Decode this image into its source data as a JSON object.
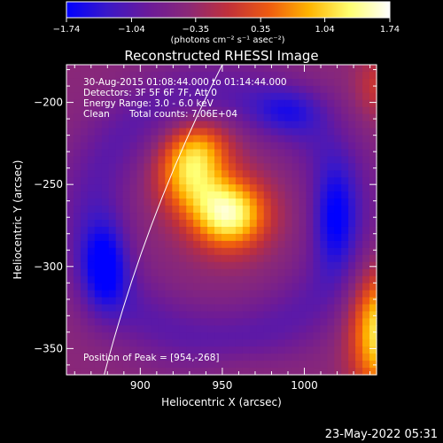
{
  "chart_data": {
    "type": "heatmap",
    "title": "Reconstructed RHESSI Image",
    "xlabel": "Heliocentric X (arcsec)",
    "ylabel": "Heliocentric Y (arcsec)",
    "xlim": [
      855,
      1044
    ],
    "ylim": [
      -366,
      -177
    ],
    "x_ticks": [
      900,
      950,
      1000
    ],
    "y_ticks": [
      -200,
      -250,
      -300,
      -350
    ],
    "colorbar": {
      "min": -1.74,
      "max": 1.74,
      "tick_labels": [
        "-1.74",
        "-1.04",
        "-0.35",
        "0.35",
        "1.04",
        "1.74"
      ],
      "label": "(photons cm⁻² s⁻¹ asec⁻²)",
      "colors": [
        "#0000ff",
        "#3a18c8",
        "#6a1a9a",
        "#8a2878",
        "#c0303a",
        "#ee5a10",
        "#ffb400",
        "#ffff70",
        "#ffffff"
      ]
    },
    "annotations": {
      "time_range": "30-Aug-2015 01:08:44.000 to 01:14:44.000",
      "detectors": "Detectors: 3F 5F 6F 7F, Att 0",
      "energy": "Energy Range: 3.0 - 6.0 keV",
      "method": "Clean",
      "total_counts": "Total counts: 7.06E+04",
      "peak": "Position of Peak = [954,-268]"
    },
    "peak": {
      "x": 954,
      "y": -268
    },
    "sources": [
      {
        "x": 954,
        "y": -268,
        "amp": 1.95,
        "sx": 16,
        "sy": 15
      },
      {
        "x": 930,
        "y": -244,
        "amp": 1.35,
        "sx": 14,
        "sy": 16
      },
      {
        "x": 937,
        "y": -226,
        "amp": 0.75,
        "sx": 14,
        "sy": 12
      }
    ],
    "ring": {
      "x": 948,
      "y": -270,
      "r": 78,
      "width": 16,
      "amp": -0.55
    },
    "lows": [
      {
        "x": 878,
        "y": -300,
        "amp": -1.0,
        "sx": 10,
        "sy": 20
      },
      {
        "x": 1018,
        "y": -270,
        "amp": -0.85,
        "sx": 9,
        "sy": 22
      },
      {
        "x": 990,
        "y": -205,
        "amp": -0.55,
        "sx": 16,
        "sy": 10
      }
    ],
    "corner_highs": [
      {
        "x": 1046,
        "y": -340,
        "amp": 1.7,
        "sx": 12,
        "sy": 26
      },
      {
        "x": 1046,
        "y": -190,
        "amp": 0.55,
        "sx": 10,
        "sy": 14
      },
      {
        "x": 960,
        "y": -360,
        "amp": 0.15,
        "sx": 20,
        "sy": 8
      }
    ],
    "limb": {
      "x1": 878,
      "y1": -366,
      "x2": 950,
      "y2": -177,
      "bow": 0.22
    }
  },
  "footer": {
    "date": "23-May-2022 05:31"
  }
}
